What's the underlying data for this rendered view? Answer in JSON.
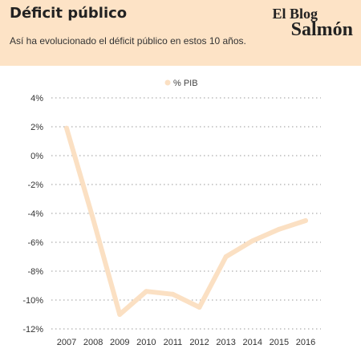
{
  "header": {
    "title": "Déficit público",
    "subtitle": "Así ha evolucionado el déficit público en estos 10 años.",
    "logo_line1": "El Blog",
    "logo_line2": "Salmón"
  },
  "colors": {
    "header_bg": "#fde3c6",
    "line": "#fbe0c3",
    "grid": "#999999"
  },
  "chart_data": {
    "type": "line",
    "title": "",
    "xlabel": "",
    "ylabel": "",
    "categories": [
      "2007",
      "2008",
      "2009",
      "2010",
      "2011",
      "2012",
      "2013",
      "2014",
      "2015",
      "2016"
    ],
    "series": [
      {
        "name": "% PIB",
        "values": [
          1.9,
          -4.4,
          -11.0,
          -9.4,
          -9.6,
          -10.5,
          -7.0,
          -5.9,
          -5.1,
          -4.5
        ]
      }
    ],
    "ylim": [
      -12,
      4
    ],
    "yticks": [
      4,
      2,
      0,
      -2,
      -4,
      -6,
      -8,
      -10,
      -12
    ],
    "ytick_labels": [
      "4%",
      "2%",
      "0%",
      "-2%",
      "-4%",
      "-6%",
      "-8%",
      "-10%",
      "-12%"
    ],
    "grid": true,
    "legend": "top-center"
  }
}
